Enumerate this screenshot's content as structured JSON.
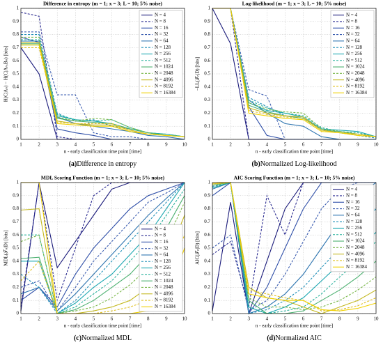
{
  "chart_data": [
    {
      "type": "line",
      "title": "Difference in entropy (m = 1; x = 3; L = 10; 5% noise)",
      "xlabel": "n - early classification time point [time]",
      "ylabel": "H(C|Aₙ) − H(C|Aₙ,Bₙ) [bits]",
      "caption_label": "(a)",
      "caption": "Difference in entropy",
      "x": [
        1,
        2,
        3,
        4,
        5,
        6,
        7,
        8,
        9,
        10
      ],
      "xlim": [
        1,
        10
      ],
      "xticks": [
        1,
        2,
        3,
        4,
        5,
        6,
        7,
        8,
        9,
        10
      ],
      "ylim": [
        0,
        1
      ],
      "yticks": [
        0,
        0.1,
        0.2,
        0.3,
        0.4,
        0.5,
        0.6,
        0.7,
        0.8,
        0.9,
        1
      ],
      "grid": true,
      "legend": "upper right",
      "series": [
        {
          "name": "N = 4",
          "color": "#1a1a7a",
          "dashed": false,
          "values": [
            0.7,
            0.5,
            0,
            0,
            0,
            0,
            0,
            0,
            0,
            0
          ]
        },
        {
          "name": "N = 8",
          "color": "#2a2a90",
          "dashed": true,
          "values": [
            0.97,
            0.94,
            0.02,
            0,
            0,
            0,
            0,
            0,
            0,
            0
          ]
        },
        {
          "name": "N = 16",
          "color": "#2f4fa8",
          "dashed": false,
          "values": [
            0.78,
            0.74,
            0.08,
            0.05,
            0.03,
            0,
            0,
            0,
            0,
            0
          ]
        },
        {
          "name": "N = 32",
          "color": "#3a5cb0",
          "dashed": true,
          "values": [
            0.82,
            0.82,
            0.34,
            0.34,
            0.05,
            0.02,
            0.02,
            0,
            0,
            0
          ]
        },
        {
          "name": "N = 64",
          "color": "#2e75b0",
          "dashed": false,
          "values": [
            0.75,
            0.75,
            0.17,
            0.12,
            0.1,
            0.08,
            0.06,
            0.03,
            0.02,
            0
          ]
        },
        {
          "name": "N = 128",
          "color": "#1f8fb8",
          "dashed": true,
          "values": [
            0.8,
            0.8,
            0.2,
            0.14,
            0.15,
            0.1,
            0.08,
            0.05,
            0.03,
            0.02
          ]
        },
        {
          "name": "N = 256",
          "color": "#1aa6b0",
          "dashed": false,
          "values": [
            0.72,
            0.72,
            0.18,
            0.15,
            0.14,
            0.12,
            0.08,
            0.05,
            0.04,
            0.02
          ]
        },
        {
          "name": "N = 512",
          "color": "#25b09a",
          "dashed": true,
          "values": [
            0.76,
            0.76,
            0.19,
            0.15,
            0.14,
            0.15,
            0.09,
            0.05,
            0.04,
            0.02
          ]
        },
        {
          "name": "N = 1024",
          "color": "#4cb070",
          "dashed": false,
          "values": [
            0.73,
            0.73,
            0.16,
            0.14,
            0.13,
            0.12,
            0.08,
            0.05,
            0.03,
            0.02
          ]
        },
        {
          "name": "N = 2048",
          "color": "#7ab84a",
          "dashed": true,
          "values": [
            0.78,
            0.78,
            0.17,
            0.14,
            0.16,
            0.15,
            0.09,
            0.05,
            0.03,
            0.02
          ]
        },
        {
          "name": "N = 4096",
          "color": "#c4b820",
          "dashed": false,
          "values": [
            0.74,
            0.74,
            0.14,
            0.12,
            0.11,
            0.11,
            0.07,
            0.04,
            0.03,
            0.02
          ]
        },
        {
          "name": "N = 8192",
          "color": "#e0c020",
          "dashed": true,
          "values": [
            0.7,
            0.7,
            0.13,
            0.12,
            0.12,
            0.12,
            0.07,
            0.04,
            0.03,
            0.02
          ]
        },
        {
          "name": "N = 16384",
          "color": "#f0d000",
          "dashed": false,
          "values": [
            0.72,
            0.72,
            0.12,
            0.11,
            0.1,
            0.1,
            0.06,
            0.04,
            0.03,
            0.02
          ]
        }
      ]
    },
    {
      "type": "line",
      "title": "Log-likelihood (m = 1; x = 3; L = 10; 5% noise)",
      "xlabel": "n - early classification time point [time]",
      "ylabel": "−LL(𝒯ₙ|D) [bits]",
      "caption_label": "(b)",
      "caption": "Normalized Log-likelihood",
      "x": [
        1,
        2,
        3,
        4,
        5,
        6,
        7,
        8,
        9,
        10
      ],
      "xlim": [
        1,
        10
      ],
      "xticks": [
        1,
        2,
        3,
        4,
        5,
        6,
        7,
        8,
        9,
        10
      ],
      "ylim": [
        0,
        1
      ],
      "yticks": [
        0,
        0.1,
        0.2,
        0.3,
        0.4,
        0.5,
        0.6,
        0.7,
        0.8,
        0.9,
        1
      ],
      "grid": true,
      "legend": "upper right",
      "series": [
        {
          "name": "N = 4",
          "color": "#1a1a7a",
          "dashed": false,
          "values": [
            1,
            0.73,
            0,
            0,
            0,
            0,
            0,
            0,
            0,
            0
          ]
        },
        {
          "name": "N = 8",
          "color": "#2a2a90",
          "dashed": true,
          "values": [
            1,
            1,
            0,
            0,
            0,
            0,
            0,
            0,
            0,
            0
          ]
        },
        {
          "name": "N = 16",
          "color": "#2f4fa8",
          "dashed": false,
          "values": [
            1,
            1,
            0.25,
            0.03,
            0,
            0,
            0,
            0,
            0,
            0
          ]
        },
        {
          "name": "N = 32",
          "color": "#3a5cb0",
          "dashed": true,
          "values": [
            1,
            1,
            0.38,
            0.33,
            0,
            0,
            0,
            0,
            0,
            0
          ]
        },
        {
          "name": "N = 64",
          "color": "#2e75b0",
          "dashed": false,
          "values": [
            1,
            1,
            0.3,
            0.2,
            0.12,
            0.1,
            0.02,
            0,
            0,
            0
          ]
        },
        {
          "name": "N = 128",
          "color": "#1f8fb8",
          "dashed": true,
          "values": [
            1,
            1,
            0.32,
            0.25,
            0.18,
            0.16,
            0.08,
            0.05,
            0.03,
            0.01
          ]
        },
        {
          "name": "N = 256",
          "color": "#1aa6b0",
          "dashed": false,
          "values": [
            1,
            1,
            0.28,
            0.22,
            0.2,
            0.17,
            0.08,
            0.07,
            0.06,
            0.02
          ]
        },
        {
          "name": "N = 512",
          "color": "#25b09a",
          "dashed": true,
          "values": [
            1,
            1,
            0.3,
            0.24,
            0.2,
            0.18,
            0.09,
            0.06,
            0.05,
            0.02
          ]
        },
        {
          "name": "N = 1024",
          "color": "#4cb070",
          "dashed": false,
          "values": [
            1,
            1,
            0.26,
            0.21,
            0.18,
            0.16,
            0.07,
            0.06,
            0.04,
            0.02
          ]
        },
        {
          "name": "N = 2048",
          "color": "#7ab84a",
          "dashed": true,
          "values": [
            1,
            1,
            0.28,
            0.23,
            0.21,
            0.2,
            0.08,
            0.06,
            0.04,
            0.02
          ]
        },
        {
          "name": "N = 4096",
          "color": "#c4b820",
          "dashed": false,
          "values": [
            1,
            1,
            0.24,
            0.2,
            0.18,
            0.17,
            0.07,
            0.05,
            0.04,
            0.02
          ]
        },
        {
          "name": "N = 8192",
          "color": "#e0c020",
          "dashed": true,
          "values": [
            1,
            1,
            0.22,
            0.19,
            0.17,
            0.16,
            0.07,
            0.05,
            0.04,
            0.02
          ]
        },
        {
          "name": "N = 16384",
          "color": "#f0d000",
          "dashed": false,
          "values": [
            1,
            1,
            0.2,
            0.18,
            0.16,
            0.15,
            0.06,
            0.05,
            0.03,
            0.02
          ]
        }
      ]
    },
    {
      "type": "line",
      "title": "MDL Scoring Function (m = 1; x = 3; L = 10; 5% noise)",
      "xlabel": "n - early classification time point [time]",
      "ylabel": "MDL(𝒯ₙ|D) [bits]",
      "caption_label": "(c)",
      "caption": "Normalized MDL",
      "x": [
        1,
        2,
        3,
        4,
        5,
        6,
        7,
        8,
        9,
        10
      ],
      "xlim": [
        1,
        10
      ],
      "xticks": [
        1,
        2,
        3,
        4,
        5,
        6,
        7,
        8,
        9,
        10
      ],
      "ylim": [
        0,
        1
      ],
      "yticks": [
        0,
        0.1,
        0.2,
        0.3,
        0.4,
        0.5,
        0.6,
        0.7,
        0.8,
        0.9,
        1
      ],
      "grid": true,
      "legend": "lower right",
      "series": [
        {
          "name": "N = 4",
          "color": "#1a1a7a",
          "dashed": false,
          "values": [
            0.02,
            1,
            0.35,
            0.55,
            0.75,
            0.95,
            1,
            1,
            1,
            1
          ]
        },
        {
          "name": "N = 8",
          "color": "#2a2a90",
          "dashed": true,
          "values": [
            0.05,
            1,
            0.1,
            0.5,
            0.9,
            1,
            1,
            1,
            1,
            1
          ]
        },
        {
          "name": "N = 16",
          "color": "#2f4fa8",
          "dashed": false,
          "values": [
            0.1,
            0.2,
            0.05,
            0.3,
            0.5,
            0.65,
            0.8,
            0.9,
            0.95,
            1
          ]
        },
        {
          "name": "N = 32",
          "color": "#3a5cb0",
          "dashed": true,
          "values": [
            0.2,
            0.25,
            0.02,
            0.2,
            0.4,
            0.55,
            0.7,
            0.85,
            0.92,
            1
          ]
        },
        {
          "name": "N = 64",
          "color": "#2e75b0",
          "dashed": false,
          "values": [
            0.15,
            0.2,
            0.02,
            0.15,
            0.3,
            0.45,
            0.6,
            0.75,
            0.88,
            1
          ]
        },
        {
          "name": "N = 128",
          "color": "#1f8fb8",
          "dashed": true,
          "values": [
            0.3,
            0.2,
            0,
            0.1,
            0.25,
            0.4,
            0.55,
            0.7,
            0.85,
            1
          ]
        },
        {
          "name": "N = 256",
          "color": "#1aa6b0",
          "dashed": false,
          "values": [
            0.4,
            0.4,
            0,
            0.08,
            0.2,
            0.3,
            0.45,
            0.6,
            0.8,
            1
          ]
        },
        {
          "name": "N = 512",
          "color": "#25b09a",
          "dashed": true,
          "values": [
            0.6,
            0.6,
            0,
            0.05,
            0.15,
            0.25,
            0.4,
            0.55,
            0.75,
            0.95
          ]
        },
        {
          "name": "N = 1024",
          "color": "#4cb070",
          "dashed": false,
          "values": [
            0.42,
            0.43,
            0,
            0.03,
            0.1,
            0.2,
            0.3,
            0.45,
            0.65,
            0.9
          ]
        },
        {
          "name": "N = 2048",
          "color": "#7ab84a",
          "dashed": true,
          "values": [
            0.55,
            0.6,
            0,
            0.02,
            0.05,
            0.12,
            0.22,
            0.35,
            0.55,
            0.85
          ]
        },
        {
          "name": "N = 4096",
          "color": "#c4b820",
          "dashed": false,
          "values": [
            0.79,
            0.8,
            0,
            0,
            0.02,
            0.05,
            0.1,
            0.2,
            0.4,
            0.75
          ]
        },
        {
          "name": "N = 8192",
          "color": "#e0c020",
          "dashed": true,
          "values": [
            0.25,
            0.4,
            0,
            0,
            0,
            0.02,
            0.05,
            0.1,
            0.25,
            0.6
          ]
        },
        {
          "name": "N = 16384",
          "color": "#f0d000",
          "dashed": false,
          "values": [
            1,
            1,
            0,
            0,
            0,
            0,
            0,
            0.02,
            0.1,
            0.5
          ]
        }
      ]
    },
    {
      "type": "line",
      "title": "AIC Scoring Function (m = 1; x = 3; L = 10; 5% noise)",
      "xlabel": "n - early classification time point [time]",
      "ylabel": "AIC(𝒯ₙ|D) [bits]",
      "caption_label": "(d)",
      "caption": "Normalized AIC",
      "x": [
        1,
        2,
        3,
        4,
        5,
        6,
        7,
        8,
        9,
        10
      ],
      "xlim": [
        1,
        10
      ],
      "xticks": [
        1,
        2,
        3,
        4,
        5,
        6,
        7,
        8,
        9,
        10
      ],
      "ylim": [
        0,
        1
      ],
      "yticks": [
        0,
        0.1,
        0.2,
        0.3,
        0.4,
        0.5,
        0.6,
        0.7,
        0.8,
        0.9,
        1
      ],
      "grid": true,
      "legend": "upper right",
      "series": [
        {
          "name": "N = 4",
          "color": "#1a1a7a",
          "dashed": false,
          "values": [
            0.02,
            0.85,
            0,
            0.4,
            0.8,
            1,
            1,
            1,
            1,
            1
          ]
        },
        {
          "name": "N = 8",
          "color": "#2a2a90",
          "dashed": true,
          "values": [
            0.45,
            0.55,
            0.05,
            0.9,
            0.6,
            1,
            1,
            1,
            1,
            1
          ]
        },
        {
          "name": "N = 16",
          "color": "#2f4fa8",
          "dashed": false,
          "values": [
            0.9,
            1,
            0,
            0.2,
            0.5,
            0.8,
            1,
            1,
            1,
            1
          ]
        },
        {
          "name": "N = 32",
          "color": "#3a5cb0",
          "dashed": true,
          "values": [
            0.5,
            0.6,
            0.02,
            0.1,
            0.3,
            0.55,
            0.8,
            0.95,
            1,
            1
          ]
        },
        {
          "name": "N = 64",
          "color": "#2e75b0",
          "dashed": false,
          "values": [
            0.95,
            1,
            0,
            0.05,
            0.15,
            0.3,
            0.5,
            0.7,
            0.9,
            1
          ]
        },
        {
          "name": "N = 128",
          "color": "#1f8fb8",
          "dashed": true,
          "values": [
            0.97,
            1,
            0,
            0.03,
            0.1,
            0.2,
            0.35,
            0.5,
            0.65,
            0.8
          ]
        },
        {
          "name": "N = 256",
          "color": "#1aa6b0",
          "dashed": false,
          "values": [
            0.96,
            1,
            0.05,
            0,
            0.05,
            0.12,
            0.25,
            0.38,
            0.5,
            0.62
          ]
        },
        {
          "name": "N = 512",
          "color": "#25b09a",
          "dashed": true,
          "values": [
            0.96,
            1,
            0.05,
            0,
            0.02,
            0.05,
            0.15,
            0.28,
            0.4,
            0.55
          ]
        },
        {
          "name": "N = 1024",
          "color": "#4cb070",
          "dashed": false,
          "values": [
            0.98,
            1,
            0.1,
            0,
            0,
            0.02,
            0.1,
            0.18,
            0.28,
            0.4
          ]
        },
        {
          "name": "N = 2048",
          "color": "#7ab84a",
          "dashed": true,
          "values": [
            0.98,
            1,
            0.12,
            0.05,
            0.05,
            0.03,
            0.05,
            0.1,
            0.18,
            0.28
          ]
        },
        {
          "name": "N = 4096",
          "color": "#c4b820",
          "dashed": false,
          "values": [
            0.99,
            1,
            0.2,
            0.12,
            0.1,
            0.05,
            0,
            0.05,
            0.1,
            0.18
          ]
        },
        {
          "name": "N = 8192",
          "color": "#e0c020",
          "dashed": true,
          "values": [
            0.99,
            1,
            0.18,
            0.15,
            0.12,
            0.1,
            0.02,
            0.03,
            0.06,
            0.12
          ]
        },
        {
          "name": "N = 16384",
          "color": "#f0d000",
          "dashed": false,
          "values": [
            1,
            1,
            0.15,
            0.12,
            0.1,
            0.1,
            0.03,
            0.02,
            0.04,
            0.08
          ]
        }
      ]
    }
  ]
}
